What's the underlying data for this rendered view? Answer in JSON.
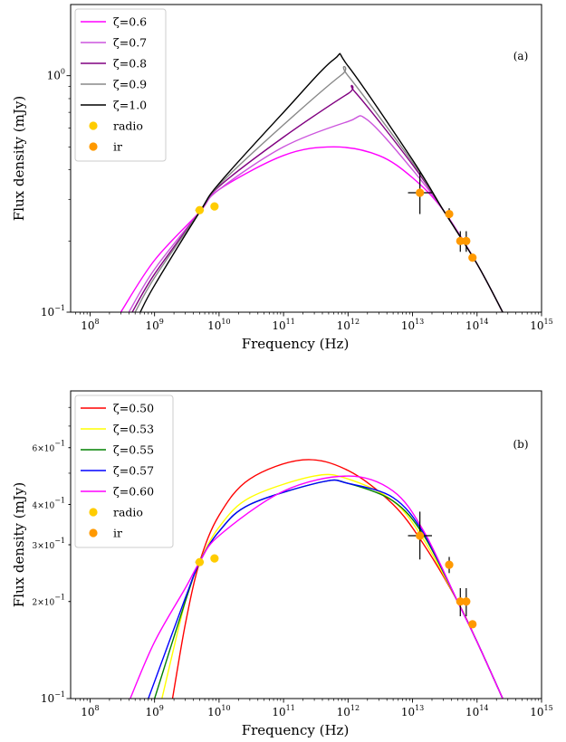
{
  "chart_data": [
    {
      "panel": "(a)",
      "type": "line",
      "xlabel": "Frequency (Hz)",
      "ylabel": "Flux density (mJy)",
      "xscale": "log",
      "yscale": "log",
      "xlim": [
        50000000,
        1000000000000000
      ],
      "ylim": [
        0.1,
        2.0
      ],
      "x_ticks": [
        {
          "label": "10",
          "exp": "8",
          "value": 100000000
        },
        {
          "label": "10",
          "exp": "9",
          "value": 1000000000
        },
        {
          "label": "10",
          "exp": "10",
          "value": 10000000000
        },
        {
          "label": "10",
          "exp": "11",
          "value": 100000000000
        },
        {
          "label": "10",
          "exp": "12",
          "value": 1000000000000
        },
        {
          "label": "10",
          "exp": "13",
          "value": 10000000000000
        },
        {
          "label": "10",
          "exp": "14",
          "value": 100000000000000
        },
        {
          "label": "10",
          "exp": "15",
          "value": 1000000000000000
        }
      ],
      "y_ticks": [
        {
          "label": "10",
          "exp": "−1",
          "value": 0.1
        },
        {
          "label": "10",
          "exp": "0",
          "value": 1.0
        }
      ],
      "legend_position": "top-left",
      "series": [
        {
          "name": "ζ=0.6",
          "color": "#ff00ff",
          "width": 1.4,
          "x": [
            300000000,
            1000000000,
            5000000000,
            10000000000,
            100000000000,
            600000000000,
            3000000000000,
            10000000000000,
            30000000000000,
            100000000000000,
            250000000000000
          ],
          "y": [
            0.1,
            0.166,
            0.265,
            0.33,
            0.46,
            0.5,
            0.46,
            0.37,
            0.27,
            0.16,
            0.1
          ]
        },
        {
          "name": "ζ=0.7",
          "color": "#cc55dd",
          "width": 1.4,
          "x": [
            400000000,
            1000000000,
            5000000000,
            10000000000,
            100000000000,
            1000000000000,
            2000000000000,
            10000000000000,
            30000000000000,
            100000000000000,
            250000000000000
          ],
          "y": [
            0.1,
            0.152,
            0.265,
            0.33,
            0.5,
            0.64,
            0.65,
            0.4,
            0.27,
            0.16,
            0.1
          ]
        },
        {
          "name": "ζ=0.8",
          "color": "#800080",
          "width": 1.4,
          "x": [
            450000000,
            1000000000,
            5000000000,
            10000000000,
            100000000000,
            1000000000000,
            1300000000000,
            10000000000000,
            30000000000000,
            100000000000000,
            250000000000000
          ],
          "y": [
            0.1,
            0.145,
            0.265,
            0.34,
            0.55,
            0.84,
            0.85,
            0.42,
            0.27,
            0.16,
            0.1
          ]
        },
        {
          "name": "ζ=0.9",
          "color": "#888888",
          "width": 1.4,
          "x": [
            500000000,
            1000000000,
            5000000000,
            10000000000,
            100000000000,
            800000000000,
            1000000000000,
            10000000000000,
            30000000000000,
            100000000000000,
            250000000000000
          ],
          "y": [
            0.1,
            0.14,
            0.265,
            0.345,
            0.62,
            1.01,
            1.0,
            0.43,
            0.27,
            0.16,
            0.1
          ]
        },
        {
          "name": "ζ=1.0",
          "color": "#000000",
          "width": 1.4,
          "x": [
            600000000,
            1000000000,
            5000000000,
            10000000000,
            100000000000,
            600000000000,
            1000000000000,
            10000000000000,
            30000000000000,
            100000000000000,
            250000000000000
          ],
          "y": [
            0.1,
            0.13,
            0.265,
            0.35,
            0.7,
            1.17,
            1.1,
            0.44,
            0.27,
            0.16,
            0.1
          ]
        }
      ],
      "points": [
        {
          "name": "radio",
          "color": "#ffcc00",
          "x": [
            5000000000,
            8500000000
          ],
          "y": [
            0.27,
            0.28
          ]
        },
        {
          "name": "ir",
          "color": "#ff9900",
          "x": [
            13000000000000,
            37000000000000,
            55000000000000,
            68000000000000,
            85000000000000
          ],
          "y": [
            0.32,
            0.26,
            0.2,
            0.2,
            0.17
          ]
        }
      ],
      "errorbars": [
        {
          "x": 13000000000000,
          "y": 0.32,
          "xlo": 8500000000000,
          "xhi": 20000000000000,
          "ylo": 0.26,
          "yhi": 0.39,
          "color": "#000000"
        },
        {
          "x": 5000000000,
          "y": 0.27,
          "xlo": 4300000000,
          "xhi": 5800000000,
          "ylo": 0.262,
          "yhi": 0.278,
          "color": "#000000"
        },
        {
          "x": 37000000000000,
          "y": 0.26,
          "xlo": 37000000000000,
          "xhi": 37000000000000,
          "ylo": 0.245,
          "yhi": 0.275,
          "color": "#000000"
        },
        {
          "x": 55000000000000,
          "y": 0.2,
          "xlo": 55000000000000,
          "xhi": 55000000000000,
          "ylo": 0.18,
          "yhi": 0.22,
          "color": "#000000"
        },
        {
          "x": 68000000000000,
          "y": 0.2,
          "xlo": 68000000000000,
          "xhi": 68000000000000,
          "ylo": 0.18,
          "yhi": 0.22,
          "color": "#000000"
        }
      ]
    },
    {
      "panel": "(b)",
      "type": "line",
      "xlabel": "Frequency (Hz)",
      "ylabel": "Flux density (mJy)",
      "xscale": "log",
      "yscale": "log",
      "xlim": [
        50000000,
        1000000000000000
      ],
      "ylim": [
        0.1,
        0.9
      ],
      "x_ticks": [
        {
          "label": "10",
          "exp": "8",
          "value": 100000000
        },
        {
          "label": "10",
          "exp": "9",
          "value": 1000000000
        },
        {
          "label": "10",
          "exp": "10",
          "value": 10000000000
        },
        {
          "label": "10",
          "exp": "11",
          "value": 100000000000
        },
        {
          "label": "10",
          "exp": "12",
          "value": 1000000000000
        },
        {
          "label": "10",
          "exp": "13",
          "value": 10000000000000
        },
        {
          "label": "10",
          "exp": "14",
          "value": 100000000000000
        },
        {
          "label": "10",
          "exp": "15",
          "value": 1000000000000000
        }
      ],
      "y_ticks": [
        {
          "label": "10",
          "exp": "−1",
          "value": 0.1
        },
        {
          "label": "2×10",
          "exp": "−1",
          "value": 0.2
        },
        {
          "label": "3×10",
          "exp": "−1",
          "value": 0.3
        },
        {
          "label": "4×10",
          "exp": "−1",
          "value": 0.4
        },
        {
          "label": "6×10",
          "exp": "−1",
          "value": 0.6
        }
      ],
      "legend_position": "top-left",
      "series": [
        {
          "name": "ζ=0.50",
          "color": "#ff0000",
          "width": 1.4,
          "x": [
            1900000000,
            3000000000,
            5000000000,
            10000000000,
            30000000000,
            200000000000,
            1000000000000,
            5000000000000,
            15000000000000,
            50000000000000,
            100000000000000,
            250000000000000
          ],
          "y": [
            0.1,
            0.17,
            0.265,
            0.37,
            0.48,
            0.55,
            0.51,
            0.4,
            0.3,
            0.2,
            0.15,
            0.1
          ]
        },
        {
          "name": "ζ=0.53",
          "color": "#ffff00",
          "width": 1.4,
          "x": [
            1300000000,
            3000000000,
            5000000000,
            10000000000,
            30000000000,
            300000000000,
            1000000000000,
            5000000000000,
            15000000000000,
            50000000000000,
            100000000000000,
            250000000000000
          ],
          "y": [
            0.1,
            0.2,
            0.265,
            0.34,
            0.42,
            0.49,
            0.48,
            0.41,
            0.31,
            0.2,
            0.15,
            0.1
          ]
        },
        {
          "name": "ζ=0.55",
          "color": "#008000",
          "width": 1.4,
          "x": [
            1000000000,
            3000000000,
            5000000000,
            10000000000,
            30000000000,
            400000000000,
            1000000000000,
            5000000000000,
            15000000000000,
            50000000000000,
            100000000000000,
            250000000000000
          ],
          "y": [
            0.1,
            0.2,
            0.265,
            0.33,
            0.4,
            0.47,
            0.465,
            0.41,
            0.32,
            0.2,
            0.15,
            0.1
          ]
        },
        {
          "name": "ζ=0.57",
          "color": "#0000ff",
          "width": 1.4,
          "x": [
            800000000,
            3000000000,
            5000000000,
            10000000000,
            30000000000,
            400000000000,
            1000000000000,
            5000000000000,
            15000000000000,
            50000000000000,
            100000000000000,
            250000000000000
          ],
          "y": [
            0.1,
            0.205,
            0.265,
            0.33,
            0.4,
            0.47,
            0.465,
            0.42,
            0.325,
            0.2,
            0.15,
            0.1
          ]
        },
        {
          "name": "ζ=0.60",
          "color": "#ff00ff",
          "width": 1.4,
          "x": [
            420000000,
            1000000000,
            3000000000,
            5000000000,
            10000000000,
            100000000000,
            1000000000000,
            5000000000000,
            15000000000000,
            50000000000000,
            100000000000000,
            250000000000000
          ],
          "y": [
            0.1,
            0.15,
            0.22,
            0.265,
            0.32,
            0.44,
            0.49,
            0.44,
            0.33,
            0.2,
            0.15,
            0.1
          ]
        }
      ],
      "points": [
        {
          "name": "radio",
          "color": "#ffcc00",
          "x": [
            5000000000,
            8500000000
          ],
          "y": [
            0.265,
            0.272
          ]
        },
        {
          "name": "ir",
          "color": "#ff9900",
          "x": [
            13000000000000,
            37000000000000,
            55000000000000,
            68000000000000,
            85000000000000
          ],
          "y": [
            0.32,
            0.26,
            0.2,
            0.2,
            0.17
          ]
        }
      ],
      "errorbars": [
        {
          "x": 13000000000000,
          "y": 0.32,
          "xlo": 8500000000000,
          "xhi": 20000000000000,
          "ylo": 0.27,
          "yhi": 0.38,
          "color": "#000000"
        },
        {
          "x": 5000000000,
          "y": 0.265,
          "xlo": 4300000000,
          "xhi": 5800000000,
          "ylo": 0.258,
          "yhi": 0.272,
          "color": "#000000"
        },
        {
          "x": 37000000000000,
          "y": 0.26,
          "xlo": 37000000000000,
          "xhi": 37000000000000,
          "ylo": 0.245,
          "yhi": 0.275,
          "color": "#000000"
        },
        {
          "x": 55000000000000,
          "y": 0.2,
          "xlo": 55000000000000,
          "xhi": 55000000000000,
          "ylo": 0.18,
          "yhi": 0.22,
          "color": "#000000"
        },
        {
          "x": 68000000000000,
          "y": 0.2,
          "xlo": 68000000000000,
          "xhi": 68000000000000,
          "ylo": 0.18,
          "yhi": 0.22,
          "color": "#000000"
        }
      ]
    }
  ]
}
